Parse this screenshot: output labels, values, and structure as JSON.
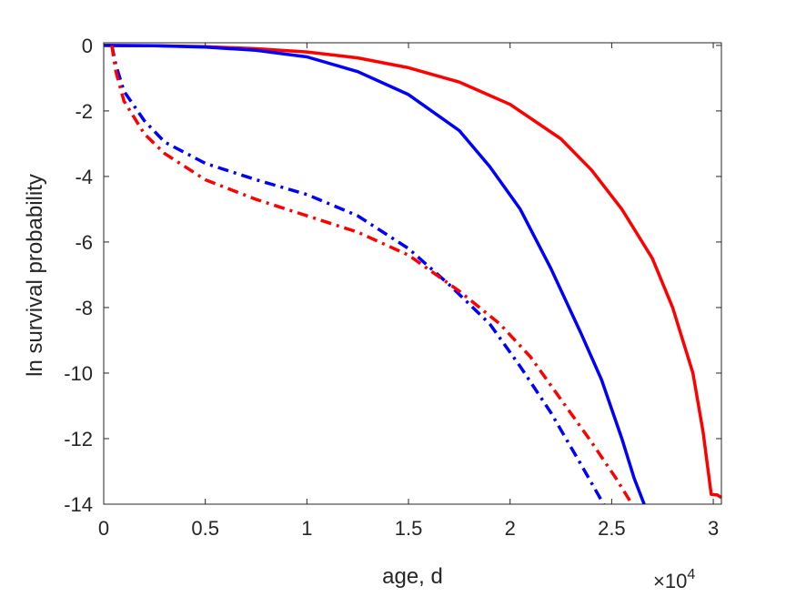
{
  "chart_data": {
    "type": "line",
    "title": "",
    "xlabel": "age, d",
    "ylabel": "ln survival probability",
    "x_exponent_label": "×10",
    "x_exponent_power": "4",
    "xlim": [
      0,
      30400
    ],
    "ylim": [
      -14,
      0.08
    ],
    "x_ticks": [
      0,
      5000,
      10000,
      15000,
      20000,
      25000,
      30000
    ],
    "x_tick_labels": [
      "0",
      "0.5",
      "1",
      "1.5",
      "2",
      "2.5",
      "3"
    ],
    "y_ticks": [
      0,
      -2,
      -4,
      -6,
      -8,
      -10,
      -12,
      -14
    ],
    "y_tick_labels": [
      "0",
      "-2",
      "-4",
      "-6",
      "-8",
      "-10",
      "-12",
      "-14"
    ],
    "grid": false,
    "series": [
      {
        "color": "#ff0000",
        "style": "solid",
        "points": [
          [
            0,
            0
          ],
          [
            2500,
            -0.01
          ],
          [
            5000,
            -0.04
          ],
          [
            7500,
            -0.1
          ],
          [
            10000,
            -0.2
          ],
          [
            12500,
            -0.38
          ],
          [
            15000,
            -0.68
          ],
          [
            17500,
            -1.12
          ],
          [
            20000,
            -1.8
          ],
          [
            22500,
            -2.85
          ],
          [
            24000,
            -3.8
          ],
          [
            25500,
            -5.0
          ],
          [
            27000,
            -6.5
          ],
          [
            28000,
            -8.0
          ],
          [
            29000,
            -10.0
          ],
          [
            29500,
            -11.8
          ],
          [
            29900,
            -13.7
          ],
          [
            30200,
            -13.72
          ],
          [
            30400,
            -13.8
          ]
        ]
      },
      {
        "color": "#0000ff",
        "style": "solid",
        "points": [
          [
            0,
            0
          ],
          [
            2500,
            -0.01
          ],
          [
            5000,
            -0.05
          ],
          [
            7500,
            -0.15
          ],
          [
            10000,
            -0.35
          ],
          [
            12500,
            -0.8
          ],
          [
            15000,
            -1.5
          ],
          [
            17500,
            -2.6
          ],
          [
            19000,
            -3.7
          ],
          [
            20500,
            -5.0
          ],
          [
            22000,
            -6.8
          ],
          [
            23500,
            -8.8
          ],
          [
            24500,
            -10.2
          ],
          [
            25500,
            -12.0
          ],
          [
            26100,
            -13.2
          ],
          [
            26600,
            -14.0
          ]
        ]
      },
      {
        "color": "#0000ff",
        "style": "dashdot",
        "points": [
          [
            400,
            0
          ],
          [
            600,
            -0.6
          ],
          [
            1000,
            -1.4
          ],
          [
            2000,
            -2.3
          ],
          [
            3000,
            -2.95
          ],
          [
            5000,
            -3.6
          ],
          [
            7500,
            -4.1
          ],
          [
            10000,
            -4.55
          ],
          [
            12500,
            -5.2
          ],
          [
            15000,
            -6.2
          ],
          [
            17000,
            -7.3
          ],
          [
            19000,
            -8.5
          ],
          [
            20500,
            -9.8
          ],
          [
            22000,
            -11.2
          ],
          [
            23500,
            -12.8
          ],
          [
            24600,
            -14.0
          ]
        ]
      },
      {
        "color": "#ff0000",
        "style": "dashdot",
        "points": [
          [
            400,
            0
          ],
          [
            600,
            -0.8
          ],
          [
            1000,
            -1.7
          ],
          [
            2000,
            -2.7
          ],
          [
            3000,
            -3.3
          ],
          [
            5000,
            -4.1
          ],
          [
            7500,
            -4.7
          ],
          [
            10000,
            -5.2
          ],
          [
            12500,
            -5.7
          ],
          [
            15000,
            -6.4
          ],
          [
            17500,
            -7.5
          ],
          [
            19500,
            -8.5
          ],
          [
            21000,
            -9.5
          ],
          [
            22500,
            -10.8
          ],
          [
            24000,
            -12.1
          ],
          [
            25200,
            -13.2
          ],
          [
            26000,
            -14.0
          ]
        ]
      }
    ]
  }
}
